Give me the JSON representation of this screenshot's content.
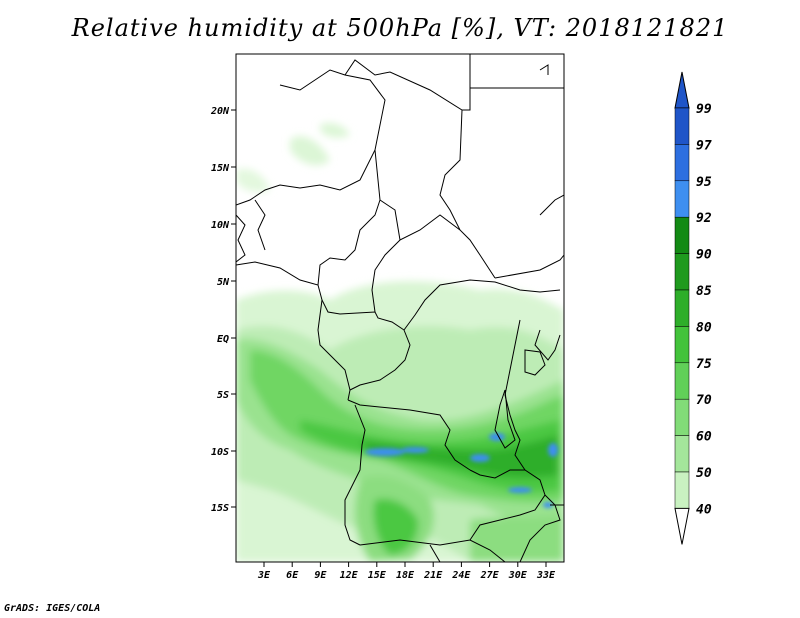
{
  "title": "Relative humidity at 500hPa [%], VT: 2018121821",
  "credit": "GrADS: IGES/COLA",
  "map": {
    "lat_labels": [
      "20N",
      "15N",
      "10N",
      "5N",
      "EQ",
      "5S",
      "10S",
      "15S"
    ],
    "lon_labels": [
      "3E",
      "6E",
      "9E",
      "12E",
      "15E",
      "18E",
      "21E",
      "24E",
      "27E",
      "30E",
      "33E"
    ]
  },
  "colorbar": {
    "levels": [
      "40",
      "50",
      "60",
      "70",
      "75",
      "80",
      "85",
      "90",
      "92",
      "95",
      "97",
      "99"
    ],
    "colors": [
      "#e8fae5",
      "#c9f2c1",
      "#a4e69b",
      "#82dc78",
      "#61d058",
      "#43c33b",
      "#2eae2a",
      "#1f9a1e",
      "#138a14",
      "#3e8ff0",
      "#2d6fe0",
      "#1f55c8"
    ]
  }
}
